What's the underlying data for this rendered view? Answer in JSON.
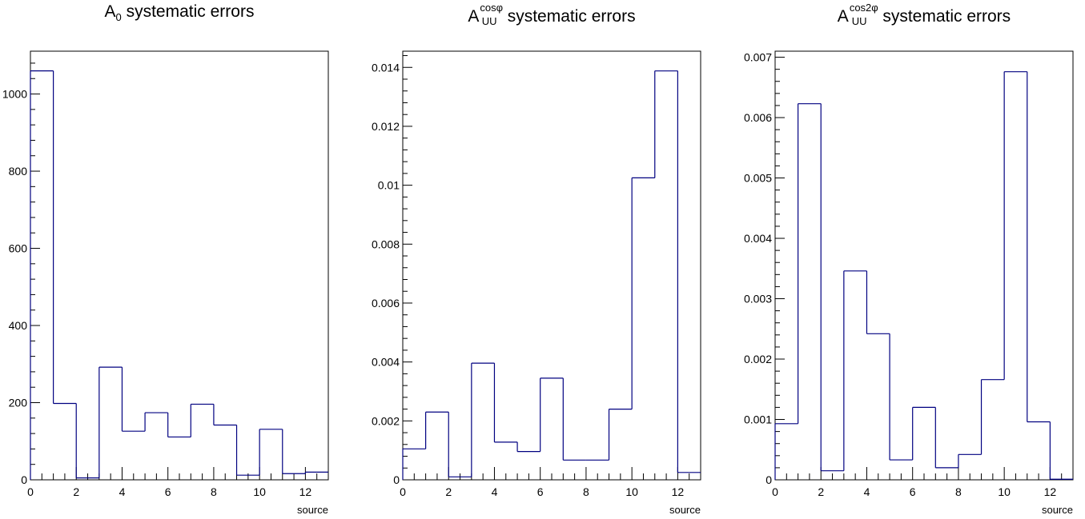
{
  "chart_data": [
    {
      "type": "histogram",
      "title": {
        "base": "A",
        "sub": "0",
        "sup": "",
        "rest": " systematic errors"
      },
      "xlabel": "source",
      "ylabel": "",
      "xlim": [
        0,
        13
      ],
      "ylim": [
        0,
        1111
      ],
      "bin_width": 1,
      "x_tick_labels": [
        "0",
        "2",
        "4",
        "6",
        "8",
        "10",
        "12"
      ],
      "y_tick_labels": [
        "0",
        "200",
        "400",
        "600",
        "800",
        "1000"
      ],
      "values": [
        1060,
        198,
        5,
        292,
        126,
        174,
        111,
        196,
        142,
        12,
        131,
        16,
        20
      ],
      "line_color": "#000080",
      "grid": false,
      "legend": false
    },
    {
      "type": "histogram",
      "title": {
        "base": "A",
        "sub": "UU",
        "sup": "cosφ",
        "rest": " systematic errors"
      },
      "xlabel": "source",
      "ylabel": "",
      "xlim": [
        0,
        13
      ],
      "ylim": [
        0,
        0.01455
      ],
      "bin_width": 1,
      "x_tick_labels": [
        "0",
        "2",
        "4",
        "6",
        "8",
        "10",
        "12"
      ],
      "y_tick_labels": [
        "0",
        "0.002",
        "0.004",
        "0.006",
        "0.008",
        "0.01",
        "0.012",
        "0.014"
      ],
      "values": [
        0.00105,
        0.0023,
        0.0001,
        0.00396,
        0.00128,
        0.00096,
        0.00345,
        0.00067,
        0.00067,
        0.0024,
        0.01025,
        0.01388,
        0.00025
      ],
      "line_color": "#000080",
      "grid": false,
      "legend": false
    },
    {
      "type": "histogram",
      "title": {
        "base": "A",
        "sub": "UU",
        "sup": "cos2φ",
        "rest": " systematic errors"
      },
      "xlabel": "source",
      "ylabel": "",
      "xlim": [
        0,
        13
      ],
      "ylim": [
        0,
        0.0071
      ],
      "bin_width": 1,
      "x_tick_labels": [
        "0",
        "2",
        "4",
        "6",
        "8",
        "10",
        "12"
      ],
      "y_tick_labels": [
        "0",
        "0.001",
        "0.002",
        "0.003",
        "0.004",
        "0.005",
        "0.006",
        "0.007"
      ],
      "values": [
        0.00093,
        0.00623,
        0.00015,
        0.00346,
        0.00242,
        0.00033,
        0.0012,
        0.0002,
        0.00042,
        0.00166,
        0.00676,
        0.00096,
        1e-05
      ],
      "line_color": "#000080",
      "grid": false,
      "legend": false
    }
  ]
}
